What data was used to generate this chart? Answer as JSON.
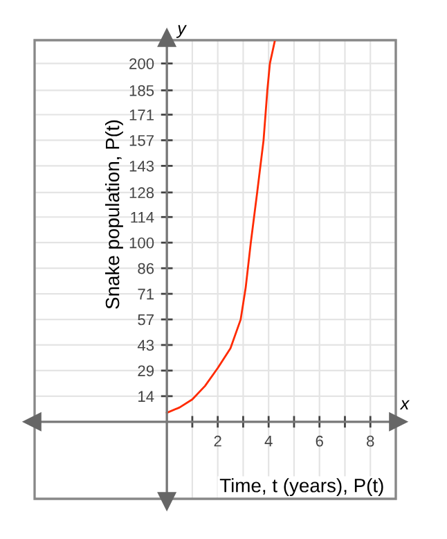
{
  "chart_data": {
    "type": "line",
    "xlabel": "Time, t (years), P(t)",
    "ylabel": "Snake population, P(t)",
    "annotations": [
      "x",
      "y"
    ],
    "x": [
      0,
      0.5,
      1,
      1.5,
      2,
      2.5,
      2.9,
      3.1,
      3.3,
      3.55,
      3.8,
      3.95,
      4.05,
      4.25
    ],
    "series": [
      {
        "color": "#ff2a00",
        "values": [
          5,
          8,
          12.5,
          20,
          30,
          41,
          57,
          75,
          100,
          128,
          157,
          185,
          200,
          213
        ]
      }
    ],
    "xlim": [
      -5.2,
      9
    ],
    "ylim": [
      -43,
      213
    ],
    "xticks": [
      {
        "value": 1,
        "label": null
      },
      2,
      {
        "value": 3,
        "label": null
      },
      4,
      {
        "value": 5,
        "label": null
      },
      6,
      {
        "value": 7,
        "label": null
      },
      8
    ],
    "yticks": [
      {
        "value": 14.29,
        "label": "14"
      },
      {
        "value": 28.57,
        "label": "29"
      },
      {
        "value": 42.86,
        "label": "43"
      },
      {
        "value": 57.14,
        "label": "57"
      },
      {
        "value": 71.43,
        "label": "71"
      },
      {
        "value": 85.71,
        "label": "86"
      },
      100,
      {
        "value": 114.29,
        "label": "114"
      },
      128,
      {
        "value": 142.86,
        "label": "143"
      },
      {
        "value": 157.14,
        "label": "157"
      },
      {
        "value": 171.43,
        "label": "171"
      },
      185,
      200
    ],
    "grid": true,
    "marker": "none",
    "line_style": "solid"
  }
}
